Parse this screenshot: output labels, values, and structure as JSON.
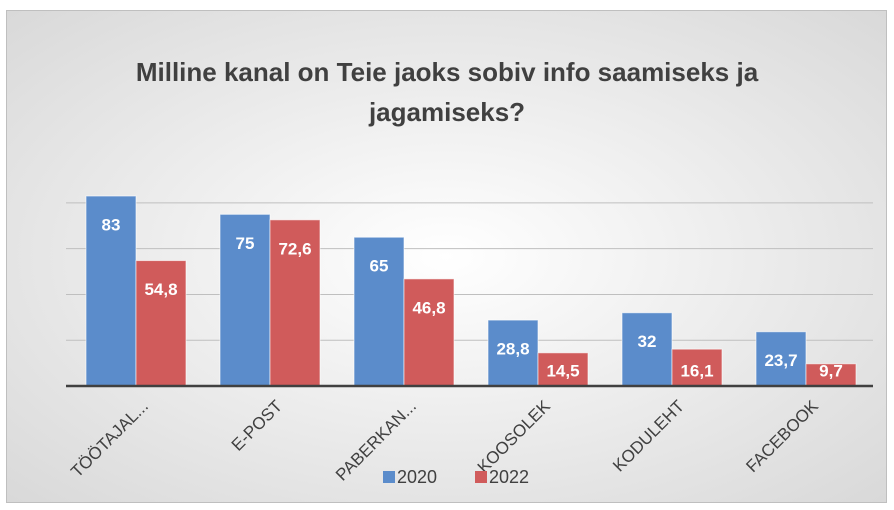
{
  "chart_data": {
    "type": "bar",
    "title": "Milline kanal on Teie jaoks sobiv info saamiseks ja jagamiseks?",
    "categories": [
      "TÖÖTAJAL...",
      "E-POST",
      "PABERKAN...",
      "KOOSOLEK",
      "KODULEHT",
      "FACEBOOK"
    ],
    "series": [
      {
        "name": "2020",
        "color": "#5b8ccb",
        "values": [
          83,
          75,
          65,
          28.8,
          32,
          23.7
        ],
        "value_labels": [
          "83",
          "75",
          "65",
          "28,8",
          "32",
          "23,7"
        ]
      },
      {
        "name": "2022",
        "color": "#d05b5b",
        "values": [
          54.8,
          72.6,
          46.8,
          14.5,
          16.1,
          9.7
        ],
        "value_labels": [
          "54,8",
          "72,6",
          "46,8",
          "14,5",
          "16,1",
          "9,7"
        ]
      }
    ],
    "ylim": [
      0,
      90
    ],
    "yticks": [
      0,
      20,
      40,
      60,
      80
    ],
    "grid": true,
    "legend": "bottom"
  }
}
